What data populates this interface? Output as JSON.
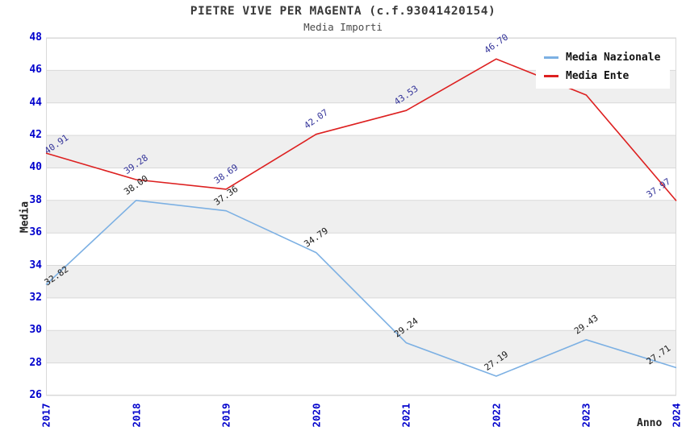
{
  "header": {
    "title": "PIETRE VIVE PER MAGENTA (c.f.93041420154)",
    "subtitle": "Media Importi"
  },
  "axes": {
    "x_label": "Anno",
    "y_label": "Media",
    "y_ticks": [
      48,
      46,
      44,
      42,
      40,
      38,
      36,
      34,
      32,
      30,
      28,
      26
    ],
    "x_ticks": [
      "2017",
      "2018",
      "2019",
      "2020",
      "2021",
      "2022",
      "2023",
      "2024"
    ]
  },
  "legend": {
    "items": [
      {
        "label": "Media Nazionale",
        "color": "#7cb0e3"
      },
      {
        "label": "Media Ente",
        "color": "#dd2020"
      }
    ]
  },
  "chart_data": {
    "type": "line",
    "title": "PIETRE VIVE PER MAGENTA (c.f.93041420154)",
    "subtitle": "Media Importi",
    "xlabel": "Anno",
    "ylabel": "Media",
    "categories": [
      "2017",
      "2018",
      "2019",
      "2020",
      "2021",
      "2022",
      "2023",
      "2024"
    ],
    "series": [
      {
        "name": "Media Nazionale",
        "color": "#7cb0e3",
        "label_color": "#1a1a1a",
        "values": [
          32.82,
          38.0,
          37.36,
          34.79,
          29.24,
          27.19,
          29.43,
          27.71
        ]
      },
      {
        "name": "Media Ente",
        "color": "#dd2020",
        "label_color": "#333399",
        "values": [
          40.91,
          39.28,
          38.69,
          42.07,
          43.53,
          46.7,
          44.48,
          37.97
        ]
      }
    ],
    "ylim": [
      26,
      48
    ],
    "y_tick_step": 2,
    "grid": "horizontal gridlines with alternating gray bands",
    "legend_position": "top-right",
    "point_labels": "each point labeled with value, rotated -35deg"
  },
  "colors": {
    "band_gray": "#efefef",
    "gridline": "#d9d9d9",
    "tick_label": "#0000cc",
    "title_text": "#3a3a3a"
  }
}
